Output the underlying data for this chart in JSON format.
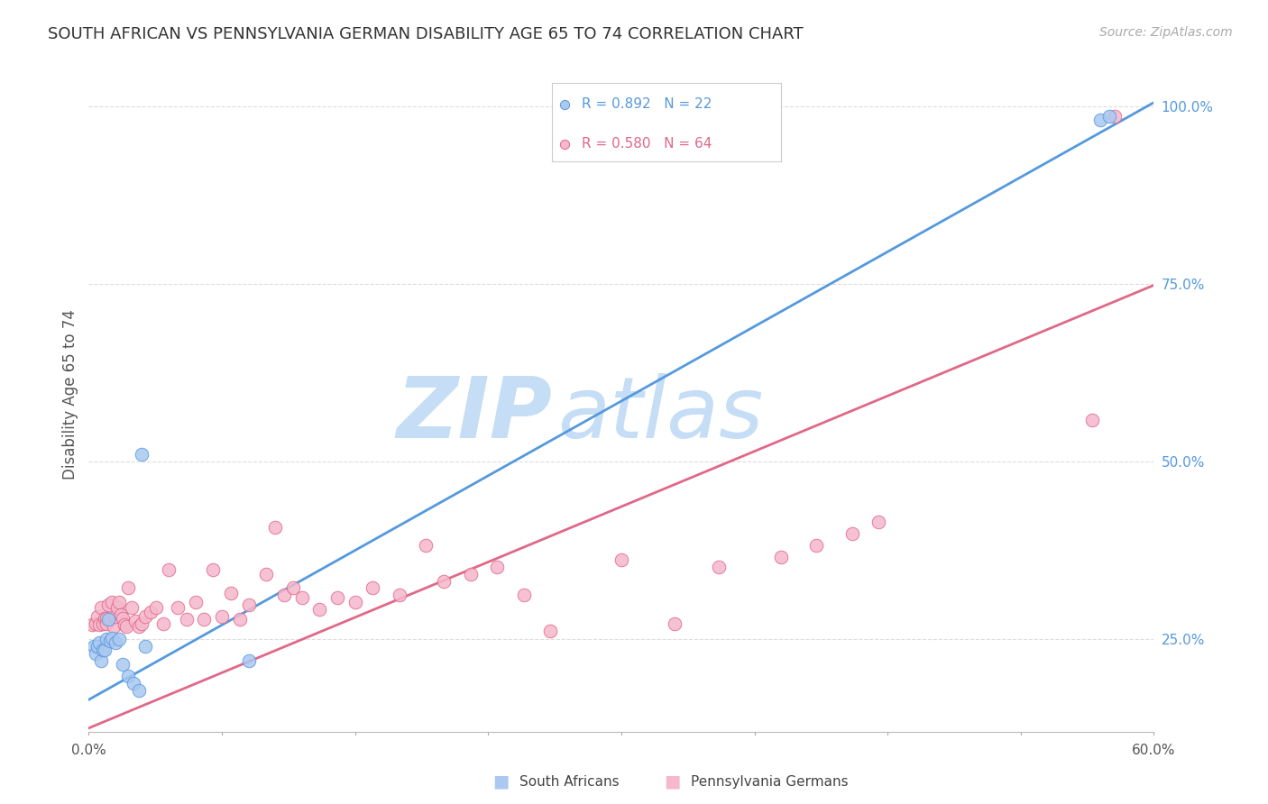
{
  "title": "SOUTH AFRICAN VS PENNSYLVANIA GERMAN DISABILITY AGE 65 TO 74 CORRELATION CHART",
  "source": "Source: ZipAtlas.com",
  "ylabel": "Disability Age 65 to 74",
  "ytick_labels": [
    "25.0%",
    "50.0%",
    "75.0%",
    "100.0%"
  ],
  "ytick_positions": [
    0.25,
    0.5,
    0.75,
    1.0
  ],
  "xmin": 0.0,
  "xmax": 0.6,
  "ymin": 0.12,
  "ymax": 1.07,
  "legend_blue_r": "R = 0.892",
  "legend_blue_n": "N = 22",
  "legend_pink_r": "R = 0.580",
  "legend_pink_n": "N = 64",
  "legend_label_blue": "South Africans",
  "legend_label_pink": "Pennsylvania Germans",
  "blue_dot_color": "#aac8f0",
  "pink_dot_color": "#f5b8cc",
  "blue_line_color": "#5599dd",
  "pink_line_color": "#e06888",
  "blue_text_color": "#5599dd",
  "pink_text_color": "#e06888",
  "watermark_zip_color": "#c5ddf5",
  "watermark_atlas_color": "#c5ddf5",
  "blue_line_x0": 0.0,
  "blue_line_x1": 0.6,
  "blue_line_y0": 0.165,
  "blue_line_y1": 1.005,
  "pink_line_x0": 0.0,
  "pink_line_x1": 0.6,
  "pink_line_y0": 0.125,
  "pink_line_y1": 0.748,
  "blue_x": [
    0.003,
    0.004,
    0.005,
    0.006,
    0.007,
    0.008,
    0.009,
    0.01,
    0.011,
    0.012,
    0.013,
    0.015,
    0.017,
    0.019,
    0.022,
    0.025,
    0.028,
    0.03,
    0.032,
    0.09,
    0.57,
    0.575
  ],
  "blue_y": [
    0.24,
    0.23,
    0.24,
    0.245,
    0.22,
    0.235,
    0.235,
    0.25,
    0.278,
    0.248,
    0.252,
    0.245,
    0.25,
    0.215,
    0.198,
    0.188,
    0.178,
    0.51,
    0.24,
    0.22,
    0.98,
    0.985
  ],
  "pink_x": [
    0.002,
    0.004,
    0.005,
    0.006,
    0.007,
    0.008,
    0.009,
    0.01,
    0.01,
    0.011,
    0.012,
    0.013,
    0.014,
    0.015,
    0.016,
    0.017,
    0.018,
    0.019,
    0.02,
    0.021,
    0.022,
    0.024,
    0.026,
    0.028,
    0.03,
    0.032,
    0.035,
    0.038,
    0.042,
    0.045,
    0.05,
    0.055,
    0.06,
    0.065,
    0.07,
    0.075,
    0.08,
    0.085,
    0.09,
    0.1,
    0.105,
    0.11,
    0.115,
    0.12,
    0.13,
    0.14,
    0.15,
    0.16,
    0.175,
    0.19,
    0.2,
    0.215,
    0.23,
    0.245,
    0.26,
    0.3,
    0.33,
    0.355,
    0.39,
    0.41,
    0.43,
    0.445,
    0.565,
    0.578
  ],
  "pink_y": [
    0.27,
    0.272,
    0.282,
    0.27,
    0.295,
    0.272,
    0.28,
    0.28,
    0.272,
    0.298,
    0.278,
    0.302,
    0.268,
    0.282,
    0.295,
    0.302,
    0.285,
    0.28,
    0.27,
    0.268,
    0.322,
    0.295,
    0.275,
    0.268,
    0.272,
    0.282,
    0.288,
    0.295,
    0.272,
    0.348,
    0.295,
    0.278,
    0.302,
    0.278,
    0.348,
    0.282,
    0.315,
    0.278,
    0.298,
    0.342,
    0.408,
    0.312,
    0.322,
    0.308,
    0.292,
    0.308,
    0.302,
    0.322,
    0.312,
    0.382,
    0.332,
    0.342,
    0.352,
    0.312,
    0.262,
    0.362,
    0.272,
    0.352,
    0.365,
    0.382,
    0.398,
    0.415,
    0.558,
    0.985
  ],
  "n_xticks": 9
}
